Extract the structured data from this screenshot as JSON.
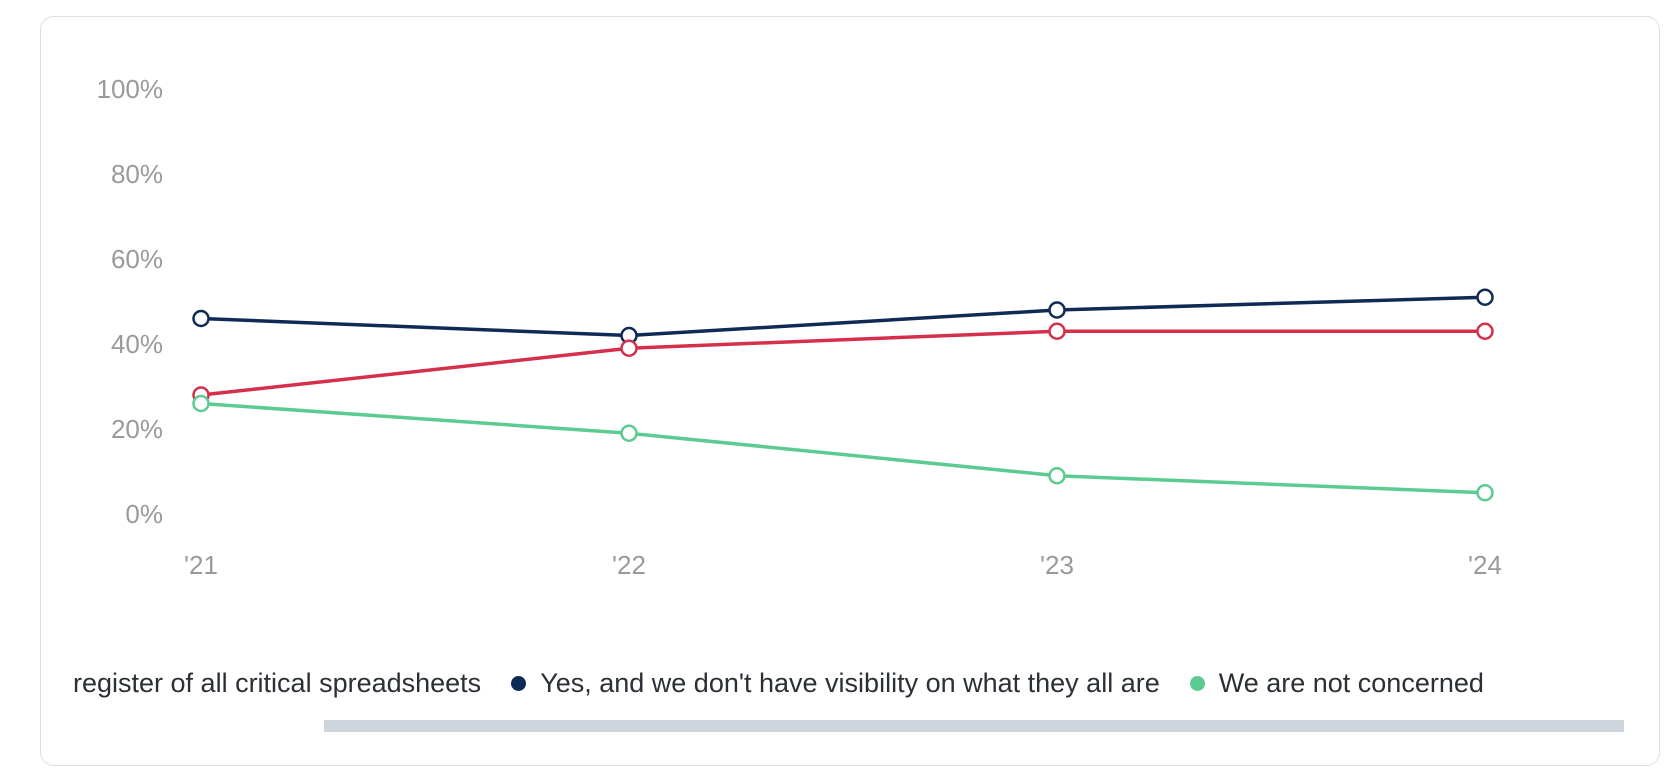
{
  "chart_data": {
    "type": "line",
    "x": [
      "'21",
      "'22",
      "'23",
      "'24"
    ],
    "ylim": [
      0,
      100
    ],
    "y_ticks": [
      "0%",
      "20%",
      "40%",
      "60%",
      "80%",
      "100%"
    ],
    "y_tick_values": [
      0,
      20,
      40,
      60,
      80,
      100
    ],
    "grid": false,
    "series": [
      {
        "name": "Yes, and we don't have visibility on what they all are",
        "color": "#0f2a55",
        "values": [
          46,
          42,
          48,
          51
        ]
      },
      {
        "name": "register of all critical spreadsheets",
        "color": "#d42f4b",
        "values": [
          28,
          39,
          43,
          43
        ]
      },
      {
        "name": "We are not concerned",
        "color": "#5ccb92",
        "values": [
          26,
          19,
          9,
          5
        ]
      }
    ],
    "legend": [
      {
        "label": "register of all critical spreadsheets",
        "color": "#d42f4b",
        "dot_visible": false
      },
      {
        "label": "Yes, and we don't have visibility on what they all are",
        "color": "#0f2a55",
        "dot_visible": true
      },
      {
        "label": "We are not concerned",
        "color": "#5ccb92",
        "dot_visible": true
      }
    ],
    "legend_position": "bottom"
  },
  "colors": {
    "tick_text": "#9a9a9a",
    "scrollbar": "#cfd5dc"
  }
}
